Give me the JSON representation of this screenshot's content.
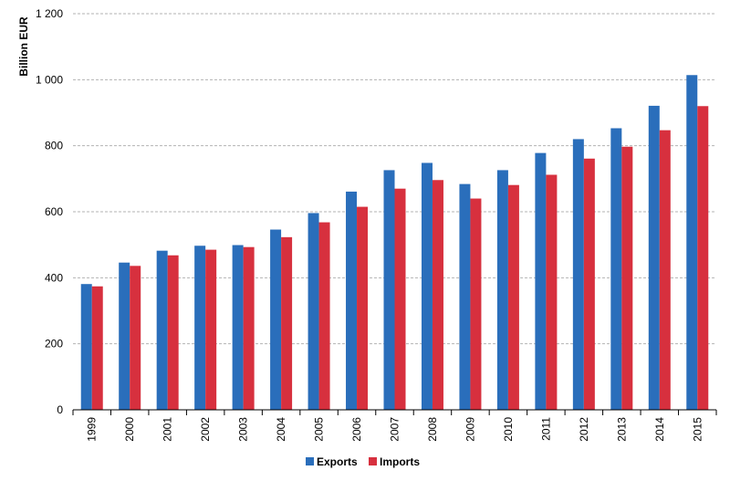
{
  "chart_data": {
    "type": "bar",
    "ylabel": "Billion EUR",
    "ylim": [
      0,
      1200
    ],
    "y_ticks": [
      0,
      200,
      400,
      600,
      800,
      1000,
      1200
    ],
    "y_tick_labels": [
      "0",
      "200",
      "400",
      "600",
      "800",
      "1 000",
      "1 200"
    ],
    "grid": true,
    "legend_position": "bottom-center",
    "categories": [
      "1999",
      "2000",
      "2001",
      "2002",
      "2003",
      "2004",
      "2005",
      "2006",
      "2007",
      "2008",
      "2009",
      "2010",
      "2011",
      "2012",
      "2013",
      "2014",
      "2015"
    ],
    "series": [
      {
        "name": "Exports",
        "color": "#2a6ebb",
        "values": [
          381,
          446,
          482,
          497,
          499,
          546,
          596,
          661,
          726,
          748,
          684,
          726,
          778,
          820,
          853,
          921,
          1014
        ]
      },
      {
        "name": "Imports",
        "color": "#d7303e",
        "values": [
          374,
          436,
          468,
          485,
          493,
          523,
          568,
          615,
          670,
          696,
          640,
          681,
          712,
          761,
          797,
          847,
          920
        ]
      }
    ]
  }
}
